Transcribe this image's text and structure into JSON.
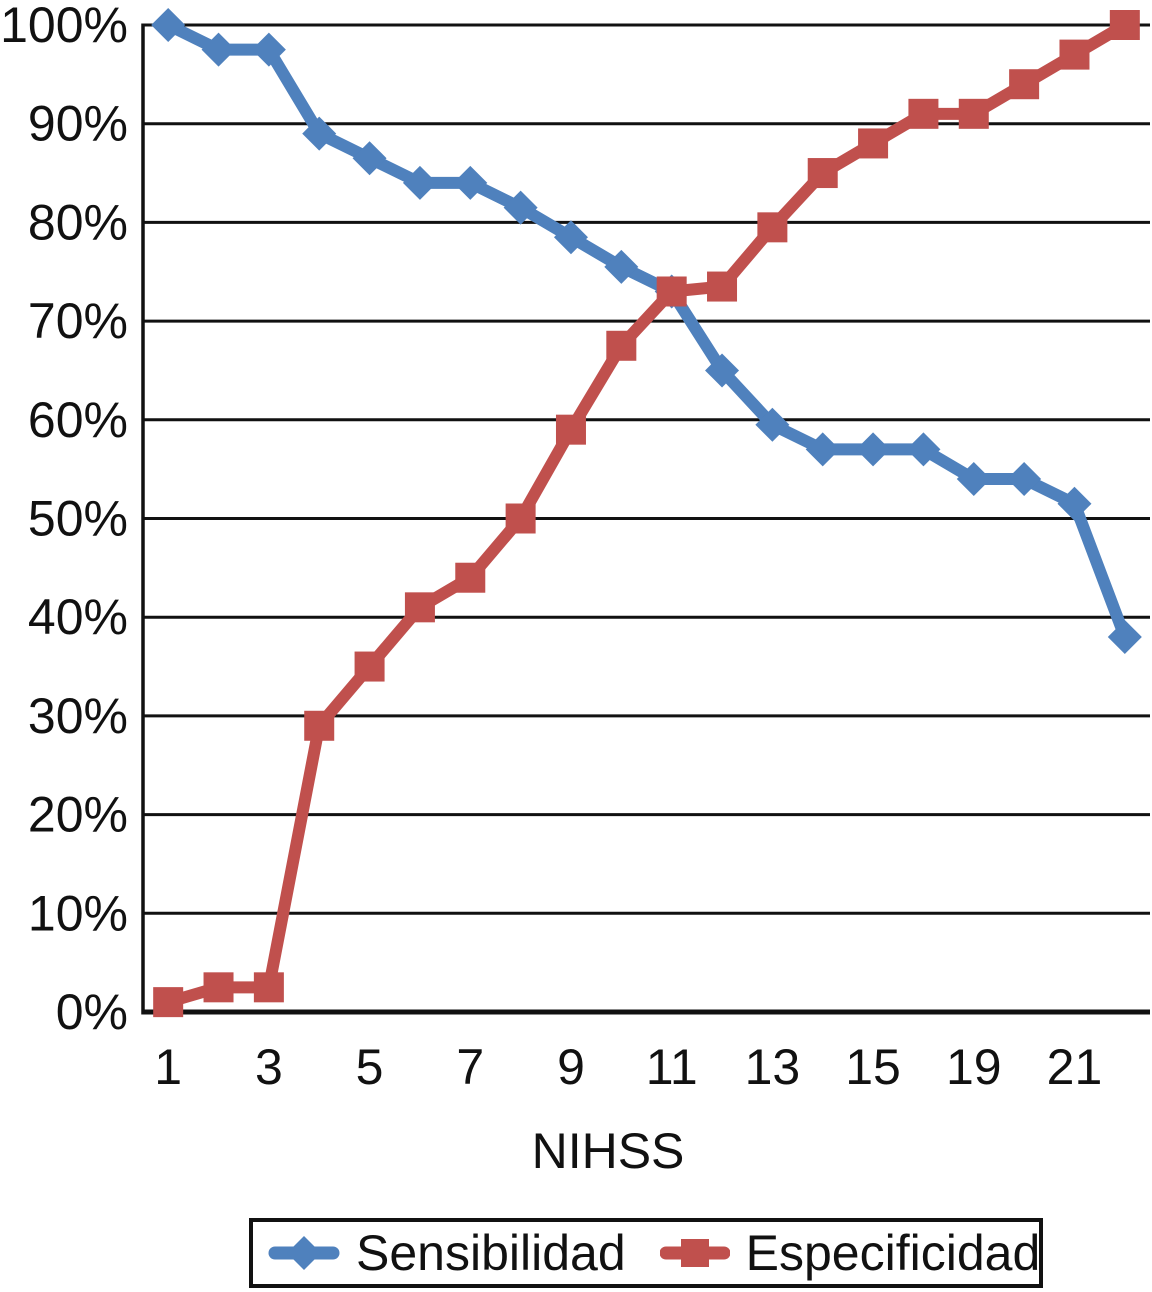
{
  "chart_data": {
    "type": "line",
    "title": "",
    "xlabel": "NIHSS",
    "ylabel": "",
    "ylim": [
      0,
      100
    ],
    "grid": "horizontal-only",
    "legend_position": "bottom",
    "y_tick_labels": [
      "0%",
      "10%",
      "20%",
      "30%",
      "40%",
      "50%",
      "60%",
      "70%",
      "80%",
      "90%",
      "100%"
    ],
    "categories": [
      "1",
      "2",
      "3",
      "4",
      "5",
      "6",
      "7",
      "8",
      "9",
      "10",
      "11",
      "12",
      "13",
      "14",
      "15",
      "16",
      "19",
      "20",
      "21",
      "22"
    ],
    "x_tick_labels": [
      "1",
      "3",
      "5",
      "7",
      "9",
      "11",
      "13",
      "15",
      "19",
      "21"
    ],
    "x_tick_every": 2,
    "series": [
      {
        "name": "Sensibilidad",
        "color": "#4F81BD",
        "marker": "diamond",
        "values": [
          100,
          97.5,
          97.5,
          89,
          86.5,
          84,
          84,
          81.5,
          78.5,
          75.5,
          73,
          65,
          59.5,
          57,
          57,
          57,
          54,
          54,
          51.5,
          38
        ]
      },
      {
        "name": "Especificidad",
        "color": "#C0504D",
        "marker": "square",
        "values": [
          1,
          2.5,
          2.5,
          29,
          35,
          41,
          44,
          50,
          59,
          67.5,
          73,
          73.5,
          79.5,
          85,
          88,
          91,
          91,
          94,
          97,
          100
        ]
      }
    ]
  },
  "axis": {
    "xlabel": "NIHSS"
  },
  "legend": {
    "items": [
      {
        "label": "Sensibilidad"
      },
      {
        "label": "Especificidad"
      }
    ]
  },
  "colors": {
    "grid": "#111111",
    "text": "#111111",
    "background": "#ffffff"
  }
}
